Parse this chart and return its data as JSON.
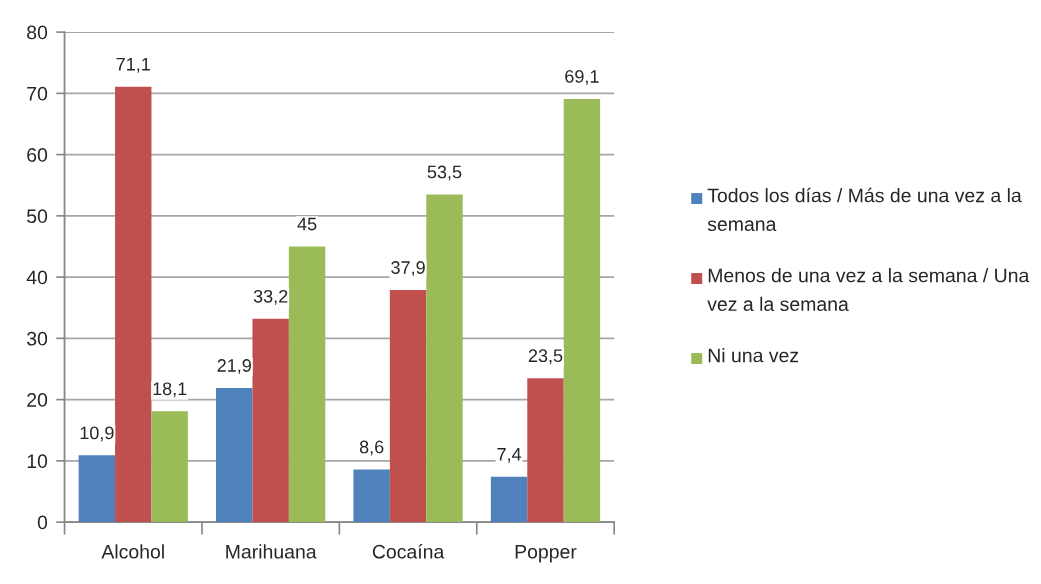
{
  "chart_data": {
    "type": "bar",
    "categories": [
      "Alcohol",
      "Marihuana",
      "Cocaína",
      "Popper"
    ],
    "series": [
      {
        "name": "Todos los días / Más de una vez a la semana",
        "color": "#4f81bd",
        "values": [
          10.9,
          21.9,
          8.6,
          7.4
        ],
        "value_labels": [
          "10,9",
          "21,9",
          "8,6",
          "7,4"
        ]
      },
      {
        "name": "Menos de una vez a la semana / Una vez a la semana",
        "color": "#c0504d",
        "values": [
          71.1,
          33.2,
          37.9,
          23.5
        ],
        "value_labels": [
          "71,1",
          "33,2",
          "37,9",
          "23,5"
        ]
      },
      {
        "name": "Ni una vez",
        "color": "#9bbb59",
        "values": [
          18.1,
          45,
          53.5,
          69.1
        ],
        "value_labels": [
          "18,1",
          "45",
          "53,5",
          "69,1"
        ]
      }
    ],
    "ylim": [
      0,
      80
    ],
    "yticks": [
      0,
      10,
      20,
      30,
      40,
      50,
      60,
      70,
      80
    ],
    "grid": "y",
    "legend": "right"
  }
}
